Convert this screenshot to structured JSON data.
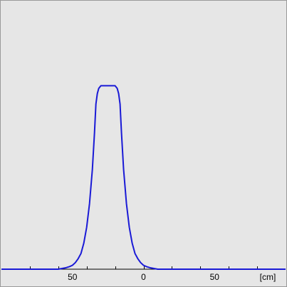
{
  "chart_data": {
    "type": "line",
    "title": "",
    "xlabel": "",
    "ylabel": "",
    "unit_label": "[cm]",
    "xlim": [
      100,
      -100
    ],
    "ylim": [
      0,
      1
    ],
    "x_ticks": [
      80,
      60,
      40,
      20,
      0,
      -20,
      -40,
      -60,
      -80
    ],
    "x_tick_labels": [
      {
        "value": 50,
        "text": "50"
      },
      {
        "value": 0,
        "text": "0"
      },
      {
        "value": -50,
        "text": "50"
      }
    ],
    "grid": false,
    "legend": "none",
    "colors": {
      "background": "#e6e6e6",
      "line": "#1a1ad6",
      "axis": "#000000"
    },
    "series": [
      {
        "values": [
          [
            100,
            0.0
          ],
          [
            80,
            0.0
          ],
          [
            70,
            0.0
          ],
          [
            60,
            0.0
          ],
          [
            55,
            0.005
          ],
          [
            52,
            0.01
          ],
          [
            50,
            0.015
          ],
          [
            48,
            0.025
          ],
          [
            46,
            0.04
          ],
          [
            44,
            0.06
          ],
          [
            42,
            0.1
          ],
          [
            40,
            0.16
          ],
          [
            38,
            0.25
          ],
          [
            36,
            0.38
          ],
          [
            34.5,
            0.52
          ],
          [
            33.5,
            0.63
          ],
          [
            32.5,
            0.67
          ],
          [
            31.5,
            0.69
          ],
          [
            30,
            0.7
          ],
          [
            25,
            0.7
          ],
          [
            20,
            0.7
          ],
          [
            18.5,
            0.69
          ],
          [
            17.5,
            0.67
          ],
          [
            16.5,
            0.63
          ],
          [
            15.5,
            0.52
          ],
          [
            14,
            0.38
          ],
          [
            12,
            0.25
          ],
          [
            10,
            0.16
          ],
          [
            8,
            0.1
          ],
          [
            6,
            0.06
          ],
          [
            4,
            0.04
          ],
          [
            2,
            0.025
          ],
          [
            0,
            0.015
          ],
          [
            -2,
            0.01
          ],
          [
            -5,
            0.005
          ],
          [
            -10,
            0.0
          ],
          [
            -20,
            0.0
          ],
          [
            -50,
            0.0
          ],
          [
            -80,
            0.0
          ],
          [
            -100,
            0.0
          ]
        ]
      }
    ]
  }
}
